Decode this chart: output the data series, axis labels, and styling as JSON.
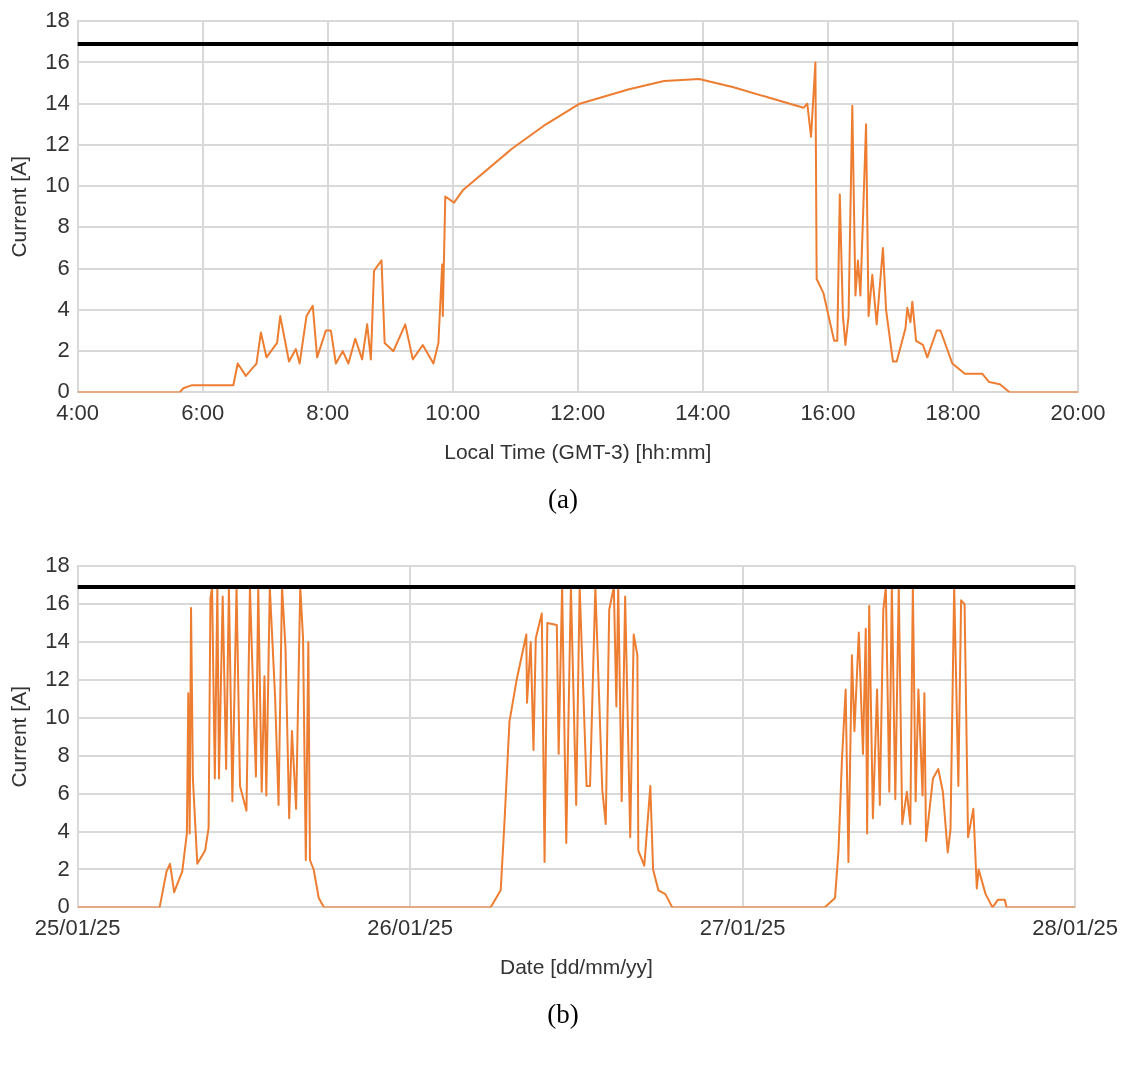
{
  "chart_data": [
    {
      "type": "line",
      "xlabel": "Local Time (GMT-3) [hh:mm]",
      "ylabel": "Current [A]",
      "annotations": [
        "(a)"
      ],
      "x": [
        4.0,
        5.63,
        5.69,
        5.83,
        6.49,
        6.56,
        6.69,
        6.86,
        6.93,
        7.02,
        7.19,
        7.24,
        7.38,
        7.49,
        7.55,
        7.66,
        7.76,
        7.83,
        7.97,
        8.05,
        8.13,
        8.24,
        8.33,
        8.44,
        8.55,
        8.63,
        8.69,
        8.74,
        8.86,
        8.91,
        9.05,
        9.24,
        9.36,
        9.52,
        9.69,
        9.77,
        9.83,
        9.84,
        9.88,
        10.02,
        10.16,
        10.94,
        11.49,
        12.03,
        12.82,
        13.38,
        13.94,
        14.49,
        15.05,
        15.61,
        15.67,
        15.73,
        15.8,
        15.82,
        15.93,
        16.1,
        16.15,
        16.19,
        16.24,
        16.28,
        16.33,
        16.39,
        16.44,
        16.48,
        16.52,
        16.61,
        16.65,
        16.71,
        16.78,
        16.88,
        16.93,
        17.04,
        17.1,
        17.24,
        17.27,
        17.32,
        17.35,
        17.41,
        17.52,
        17.59,
        17.74,
        17.8,
        17.99,
        18.19,
        18.47,
        18.58,
        18.75,
        18.91,
        20.0
      ],
      "series": [
        {
          "color": "#ed7d31",
          "values": [
            0,
            0,
            0.2,
            0.35,
            0.35,
            1.4,
            0.8,
            1.4,
            2.9,
            1.7,
            2.4,
            3.7,
            1.5,
            2.1,
            1.4,
            3.7,
            4.2,
            1.7,
            3.0,
            3.0,
            1.4,
            2.0,
            1.4,
            2.6,
            1.6,
            3.3,
            1.6,
            5.9,
            6.4,
            2.4,
            2.0,
            3.3,
            1.6,
            2.3,
            1.4,
            2.4,
            6.2,
            3.7,
            9.5,
            9.2,
            9.8,
            11.8,
            13.0,
            14.0,
            14.7,
            15.1,
            15.2,
            14.8,
            14.3,
            13.8,
            14.0,
            12.4,
            16.0,
            5.5,
            4.8,
            2.5,
            2.5,
            9.6,
            3.7,
            2.3,
            3.7,
            13.9,
            4.7,
            6.4,
            4.7,
            13.0,
            3.7,
            5.7,
            3.3,
            7.0,
            4.0,
            1.5,
            1.5,
            3.1,
            4.1,
            3.4,
            4.4,
            2.5,
            2.3,
            1.7,
            3.0,
            3.0,
            1.4,
            0.9,
            0.9,
            0.5,
            0.4,
            0,
            0
          ]
        }
      ],
      "xlim": [
        4,
        20
      ],
      "xticks": [
        {
          "value": 4,
          "label": "4:00"
        },
        {
          "value": 6,
          "label": "6:00"
        },
        {
          "value": 8,
          "label": "8:00"
        },
        {
          "value": 10,
          "label": "10:00"
        },
        {
          "value": 12,
          "label": "12:00"
        },
        {
          "value": 14,
          "label": "14:00"
        },
        {
          "value": 16,
          "label": "16:00"
        },
        {
          "value": 18,
          "label": "18:00"
        },
        {
          "value": 20,
          "label": "20:00"
        }
      ],
      "ylim": [
        0,
        18
      ],
      "yticks": [
        0,
        2,
        4,
        6,
        8,
        10,
        12,
        14,
        16,
        18
      ],
      "ref_lines": [
        {
          "axis": "y",
          "value": 16.9,
          "color": "#000000"
        }
      ],
      "grid": true,
      "legend": false,
      "marker": "none",
      "line_style": "solid"
    },
    {
      "type": "line",
      "xlabel": "Date [dd/mm/yy]",
      "ylabel": "Current [A]",
      "annotations": [
        "(b)"
      ],
      "x": [
        "--01-25T00:00",
        "--01-25T05:55",
        "--01-25T06:25",
        "--01-25T06:40",
        "--01-25T06:58",
        "--01-25T07:33",
        "--01-25T07:53",
        "--01-25T07:59",
        "--01-25T08:05",
        "--01-25T08:11",
        "--01-25T08:19",
        "--01-25T08:38",
        "--01-25T09:12",
        "--01-25T09:27",
        "--01-25T09:35",
        "--01-25T09:42",
        "--01-25T09:54",
        "--01-25T10:05",
        "--01-25T10:12",
        "--01-25T10:28",
        "--01-25T10:43",
        "--01-25T10:55",
        "--01-25T11:10",
        "--01-25T11:28",
        "--01-25T11:43",
        "--01-25T12:11",
        "--01-25T12:26",
        "--01-25T12:44",
        "--01-25T12:52",
        "--01-25T13:02",
        "--01-25T13:17",
        "--01-25T13:29",
        "--01-25T13:37",
        "--01-25T13:52",
        "--01-25T14:15",
        "--01-25T14:30",
        "--01-25T14:45",
        "--01-25T15:00",
        "--01-25T15:16",
        "--01-25T15:28",
        "--01-25T15:46",
        "--01-25T16:04",
        "--01-25T16:16",
        "--01-25T16:28",
        "--01-25T16:39",
        "--01-25T16:46",
        "--01-25T17:02",
        "--01-25T17:24",
        "--01-25T17:47",
        "--01-26T05:48",
        "--01-26T06:32",
        "--01-26T06:48",
        "--01-26T07:10",
        "--01-26T07:41",
        "--01-26T08:23",
        "--01-26T08:26",
        "--01-26T08:42",
        "--01-26T08:54",
        "--01-26T09:04",
        "--01-26T09:30",
        "--01-26T09:42",
        "--01-26T09:54",
        "--01-26T10:35",
        "--01-26T10:43",
        "--01-26T10:58",
        "--01-26T11:16",
        "--01-26T11:36",
        "--01-26T11:59",
        "--01-26T12:14",
        "--01-26T12:44",
        "--01-26T12:59",
        "--01-26T13:22",
        "--01-26T13:52",
        "--01-26T14:07",
        "--01-26T14:22",
        "--01-26T14:42",
        "--01-26T14:53",
        "--01-26T15:01",
        "--01-26T15:16",
        "--01-26T15:31",
        "--01-26T15:53",
        "--01-26T16:08",
        "--01-26T16:24",
        "--01-26T16:28",
        "--01-26T16:54",
        "--01-26T17:20",
        "--01-26T17:32",
        "--01-26T17:55",
        "--01-26T18:25",
        "--01-26T18:55",
        "--01-27T05:55",
        "--01-27T06:40",
        "--01-27T06:55",
        "--01-27T07:10",
        "--01-27T07:26",
        "--01-27T07:38",
        "--01-27T07:53",
        "--01-27T08:04",
        "--01-27T08:23",
        "--01-27T08:41",
        "--01-27T08:53",
        "--01-27T08:59",
        "--01-27T09:08",
        "--01-27T09:24",
        "--01-27T09:42",
        "--01-27T09:54",
        "--01-27T10:09",
        "--01-27T10:20",
        "--01-27T10:35",
        "--01-27T10:46",
        "--01-27T11:01",
        "--01-27T11:16",
        "--01-27T11:31",
        "--01-27T11:51",
        "--01-27T12:06",
        "--01-27T12:17",
        "--01-27T12:29",
        "--01-27T12:41",
        "--01-27T12:59",
        "--01-27T13:07",
        "--01-27T13:14",
        "--01-27T13:44",
        "--01-27T14:07",
        "--01-27T14:27",
        "--01-27T14:48",
        "--01-27T15:00",
        "--01-27T15:16",
        "--01-27T15:34",
        "--01-27T15:46",
        "--01-27T16:01",
        "--01-27T16:16",
        "--01-27T16:39",
        "--01-27T16:54",
        "--01-27T17:02",
        "--01-27T17:32",
        "--01-27T18:02",
        "--01-27T18:25",
        "--01-27T18:55",
        "--01-27T19:03",
        "--01-28T00:00"
      ],
      "series": [
        {
          "color": "#ed7d31",
          "values": [
            0,
            0,
            1.9,
            2.3,
            0.8,
            1.9,
            3.9,
            11.3,
            3.9,
            15.8,
            6.8,
            2.3,
            3.0,
            4.2,
            16.3,
            16.9,
            6.8,
            16.9,
            6.8,
            16.4,
            7.3,
            16.9,
            5.6,
            16.9,
            6.4,
            5.1,
            16.9,
            9.8,
            6.9,
            16.9,
            6.1,
            12.2,
            5.9,
            16.9,
            11.1,
            5.4,
            16.9,
            13.7,
            4.7,
            9.3,
            5.2,
            16.9,
            14.2,
            2.5,
            14.0,
            2.5,
            2.0,
            0.5,
            0,
            0,
            0.9,
            4.4,
            9.8,
            12.0,
            14.4,
            10.8,
            14.0,
            8.3,
            14.2,
            15.5,
            2.4,
            15.0,
            14.9,
            8.1,
            16.9,
            3.4,
            16.9,
            5.4,
            16.9,
            6.4,
            6.4,
            16.9,
            6.2,
            4.4,
            15.7,
            16.9,
            10.6,
            16.9,
            5.6,
            16.4,
            3.7,
            14.4,
            13.3,
            3.0,
            2.2,
            6.4,
            2.0,
            0.9,
            0.7,
            0,
            0,
            0.5,
            3.0,
            7.8,
            11.5,
            2.4,
            13.3,
            9.3,
            14.5,
            8.1,
            14.7,
            3.9,
            15.9,
            4.7,
            11.5,
            5.4,
            15.7,
            16.9,
            6.1,
            16.9,
            5.7,
            16.9,
            4.4,
            6.1,
            4.4,
            16.9,
            5.6,
            11.5,
            5.9,
            11.3,
            3.5,
            6.8,
            7.3,
            6.1,
            2.9,
            4.1,
            16.9,
            6.4,
            16.2,
            16.0,
            3.7,
            5.2,
            1.0,
            2.0,
            0.7,
            0,
            0.4,
            0.4,
            0,
            0
          ]
        }
      ],
      "xlim": [
        "--01-25",
        "--01-28"
      ],
      "xticks": [
        {
          "value": "--01-25",
          "label": "25/01/25"
        },
        {
          "value": "--01-26",
          "label": "26/01/25"
        },
        {
          "value": "--01-27",
          "label": "27/01/25"
        },
        {
          "value": "--01-28",
          "label": "28/01/25"
        }
      ],
      "ylim": [
        0,
        18
      ],
      "yticks": [
        0,
        2,
        4,
        6,
        8,
        10,
        12,
        14,
        16,
        18
      ],
      "ref_lines": [
        {
          "axis": "y",
          "value": 16.9,
          "color": "#000000"
        }
      ],
      "grid": true,
      "legend": false,
      "marker": "none",
      "line_style": "solid"
    }
  ]
}
